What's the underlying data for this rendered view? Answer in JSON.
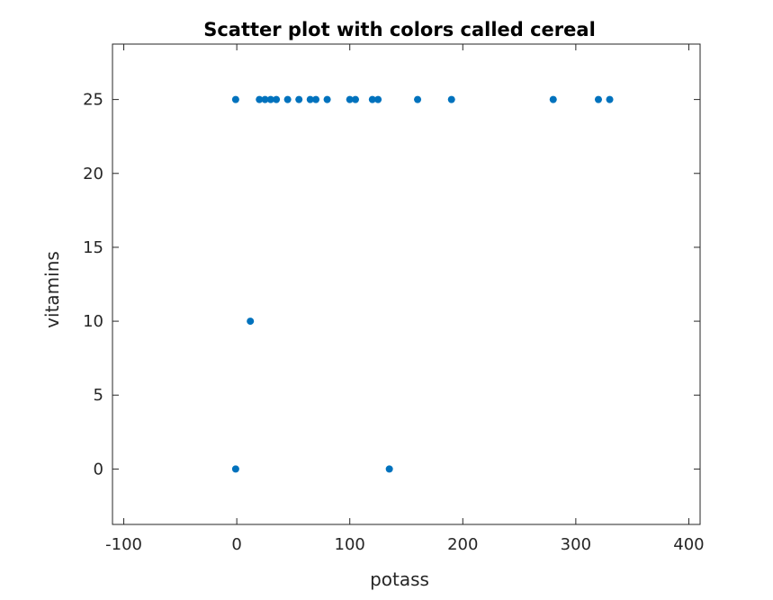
{
  "chart_data": {
    "type": "scatter",
    "title": "Scatter plot with colors called cereal",
    "xlabel": "potass",
    "ylabel": "vitamins",
    "xlim": [
      -110,
      410
    ],
    "ylim": [
      -3.75,
      28.75
    ],
    "xticks": [
      -100,
      0,
      100,
      200,
      300,
      400
    ],
    "xtick_labels": [
      "-100",
      "0",
      "100",
      "200",
      "300",
      "400"
    ],
    "yticks": [
      0,
      5,
      10,
      15,
      20,
      25
    ],
    "ytick_labels": [
      "0",
      "5",
      "10",
      "15",
      "20",
      "25"
    ],
    "grid": false,
    "series": [
      {
        "name": "cereal",
        "color": "#0072BD",
        "points": [
          {
            "x": -1,
            "y": 25
          },
          {
            "x": 20,
            "y": 25
          },
          {
            "x": 25,
            "y": 25
          },
          {
            "x": 30,
            "y": 25
          },
          {
            "x": 35,
            "y": 25
          },
          {
            "x": 45,
            "y": 25
          },
          {
            "x": 55,
            "y": 25
          },
          {
            "x": 65,
            "y": 25
          },
          {
            "x": 70,
            "y": 25
          },
          {
            "x": 80,
            "y": 25
          },
          {
            "x": 100,
            "y": 25
          },
          {
            "x": 105,
            "y": 25
          },
          {
            "x": 120,
            "y": 25
          },
          {
            "x": 125,
            "y": 25
          },
          {
            "x": 160,
            "y": 25
          },
          {
            "x": 190,
            "y": 25
          },
          {
            "x": 280,
            "y": 25
          },
          {
            "x": 320,
            "y": 25
          },
          {
            "x": 330,
            "y": 25
          },
          {
            "x": 12,
            "y": 10
          },
          {
            "x": -1,
            "y": 0
          },
          {
            "x": 135,
            "y": 0
          }
        ]
      }
    ]
  }
}
